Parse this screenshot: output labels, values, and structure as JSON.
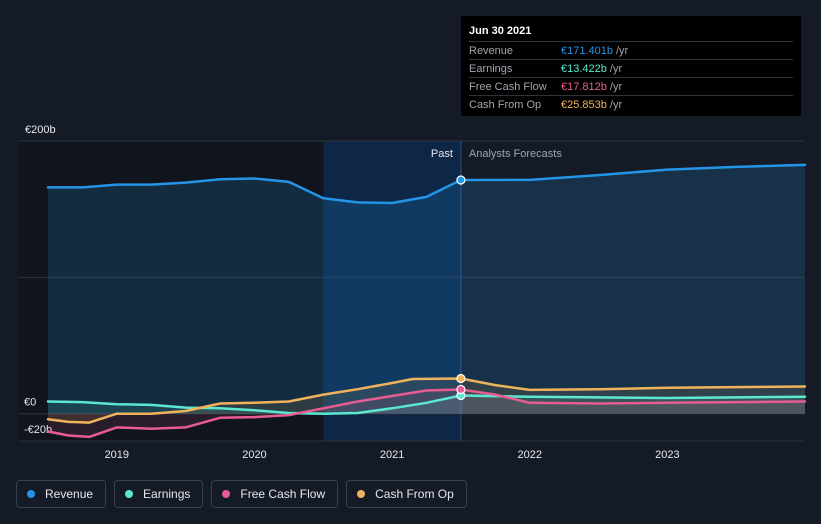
{
  "tooltip": {
    "date": "Jun 30 2021",
    "rows": [
      {
        "label": "Revenue",
        "value": "€171.401b",
        "unit": "/yr",
        "color": "#2394e6"
      },
      {
        "label": "Earnings",
        "value": "€13.422b",
        "unit": "/yr",
        "color": "#5ce8d0"
      },
      {
        "label": "Free Cash Flow",
        "value": "€17.812b",
        "unit": "/yr",
        "color": "#e85d91"
      },
      {
        "label": "Cash From Op",
        "value": "€25.853b",
        "unit": "/yr",
        "color": "#f0b35c"
      }
    ]
  },
  "legend": [
    {
      "label": "Revenue",
      "color": "#2394e6"
    },
    {
      "label": "Earnings",
      "color": "#5ce8d0"
    },
    {
      "label": "Free Cash Flow",
      "color": "#e85d91"
    },
    {
      "label": "Cash From Op",
      "color": "#f0b35c"
    }
  ],
  "chart_data": {
    "type": "line",
    "past_label": "Past",
    "forecast_label": "Analysts Forecasts",
    "divider_x": 2021.5,
    "highlight_start": 2020.5,
    "xlim": [
      2018.5,
      2024.0
    ],
    "ylim": [
      -20,
      200
    ],
    "y_tick_labels": [
      {
        "value": 200,
        "label": "€200b"
      },
      {
        "value": 0,
        "label": "€0"
      },
      {
        "value": -20,
        "label": "-€20b"
      }
    ],
    "x_ticks": [
      {
        "value": 2019,
        "label": "2019"
      },
      {
        "value": 2020,
        "label": "2020"
      },
      {
        "value": 2021,
        "label": "2021"
      },
      {
        "value": 2022,
        "label": "2022"
      },
      {
        "value": 2023,
        "label": "2023"
      }
    ],
    "series": [
      {
        "name": "Revenue",
        "color": "#2394e6",
        "x": [
          2018.5,
          2018.75,
          2019.0,
          2019.25,
          2019.5,
          2019.75,
          2020.0,
          2020.25,
          2020.5,
          2020.75,
          2021.0,
          2021.25,
          2021.5,
          2022.0,
          2022.5,
          2023.0,
          2023.5,
          2024.0
        ],
        "y": [
          166,
          166,
          168,
          168,
          169.5,
          172,
          172.5,
          170,
          158,
          155,
          154.5,
          159,
          171.4,
          171.5,
          175,
          179,
          181,
          182.5
        ]
      },
      {
        "name": "Earnings",
        "color": "#5ce8d0",
        "x": [
          2018.5,
          2018.75,
          2019.0,
          2019.25,
          2019.5,
          2019.75,
          2020.0,
          2020.25,
          2020.5,
          2020.75,
          2021.0,
          2021.25,
          2021.5,
          2022.0,
          2022.5,
          2023.0,
          2023.5,
          2024.0
        ],
        "y": [
          9,
          8.5,
          7,
          6.5,
          4.5,
          4,
          2.5,
          0.5,
          0,
          0.5,
          4,
          8,
          13.4,
          12.5,
          12,
          11.5,
          12,
          12.5
        ]
      },
      {
        "name": "Free Cash Flow",
        "color": "#e85d91",
        "x": [
          2018.5,
          2018.65,
          2018.8,
          2019.0,
          2019.25,
          2019.5,
          2019.75,
          2020.0,
          2020.25,
          2020.5,
          2020.75,
          2021.0,
          2021.25,
          2021.5,
          2021.75,
          2022.0,
          2022.5,
          2023.0,
          2023.5,
          2024.0
        ],
        "y": [
          -13,
          -16,
          -17,
          -10,
          -11,
          -10,
          -3,
          -2.5,
          -1,
          4,
          9,
          13,
          17,
          17.8,
          14,
          8,
          7.5,
          8,
          8.5,
          9
        ]
      },
      {
        "name": "Cash From Op",
        "color": "#f0b35c",
        "x": [
          2018.5,
          2018.65,
          2018.8,
          2019.0,
          2019.25,
          2019.5,
          2019.75,
          2020.0,
          2020.25,
          2020.5,
          2020.75,
          2021.0,
          2021.15,
          2021.5,
          2021.75,
          2022.0,
          2022.5,
          2023.0,
          2023.5,
          2024.0
        ],
        "y": [
          -4,
          -6,
          -6.5,
          0,
          0,
          2,
          7.5,
          8,
          9,
          14,
          18,
          22.5,
          25.5,
          25.85,
          21,
          17.5,
          18,
          19,
          19.5,
          20
        ]
      }
    ]
  }
}
